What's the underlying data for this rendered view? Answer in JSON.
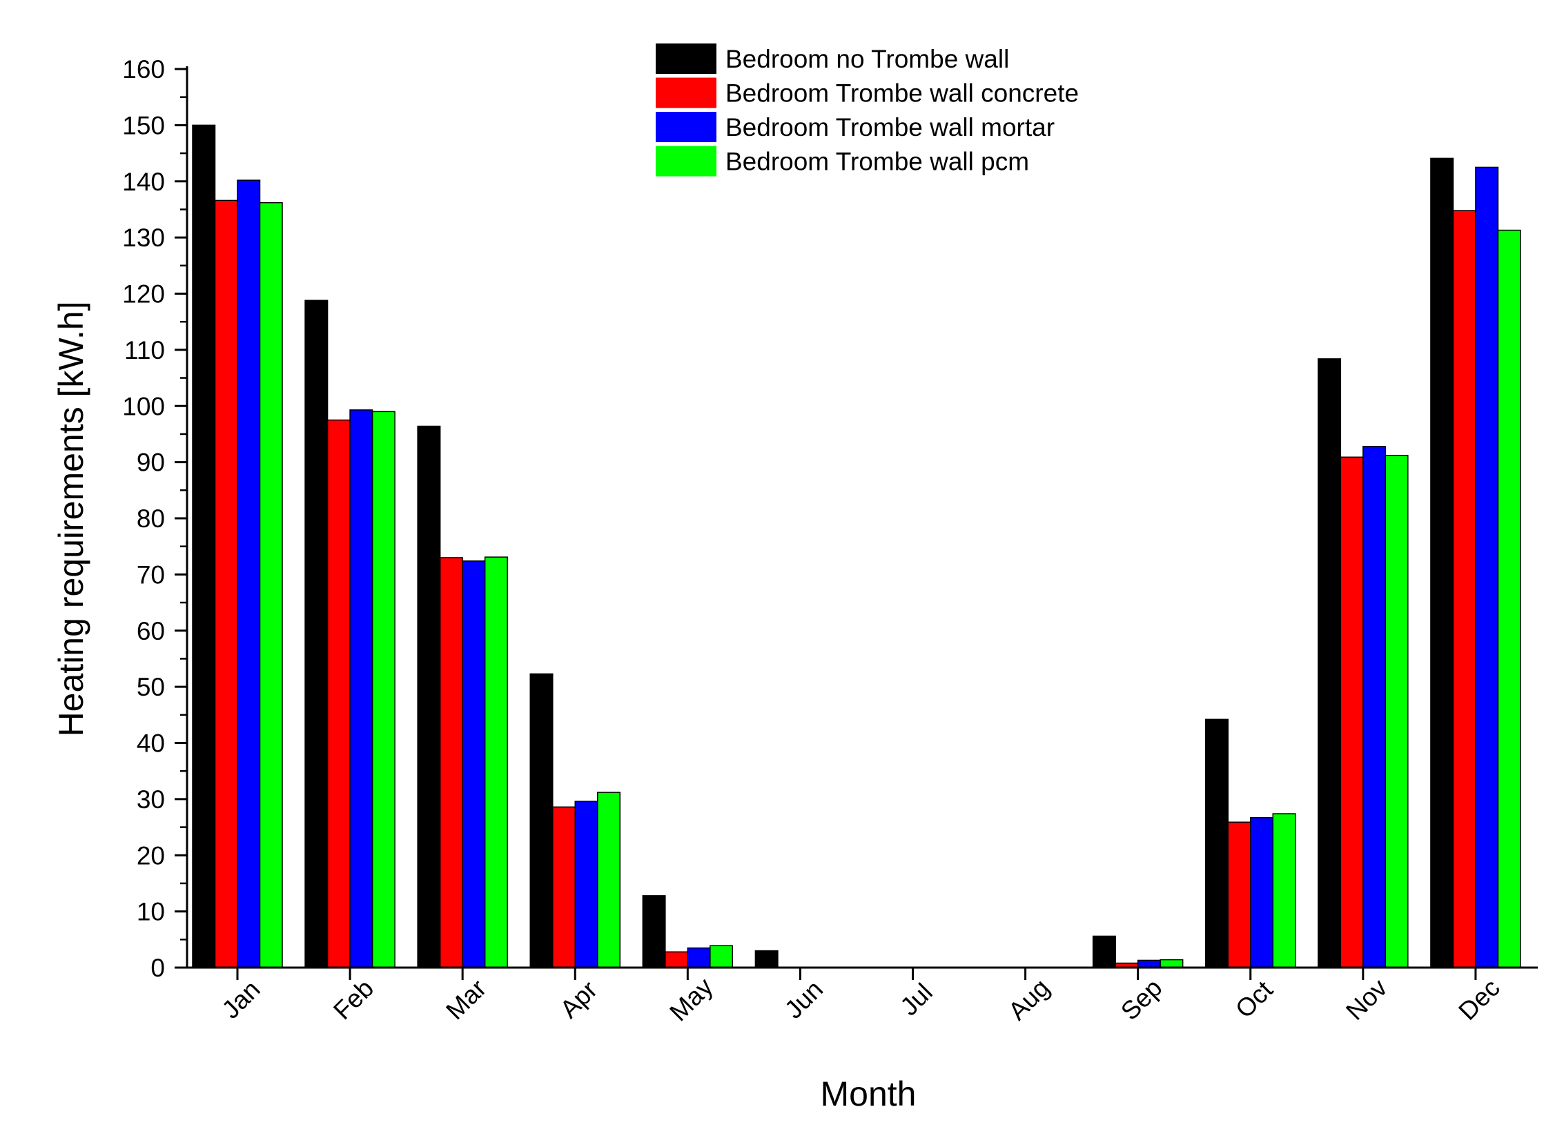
{
  "chart_data": {
    "type": "bar",
    "title": "",
    "xlabel": "Month",
    "ylabel": "Heating requirements [kW.h]",
    "ylim": [
      0,
      160
    ],
    "yticks": [
      0,
      10,
      20,
      30,
      40,
      50,
      60,
      70,
      80,
      90,
      100,
      110,
      120,
      130,
      140,
      150,
      160
    ],
    "grid": false,
    "legend_position": "top-center",
    "categories": [
      "Jan",
      "Feb",
      "Mar",
      "Apr",
      "May",
      "Jun",
      "Jul",
      "Aug",
      "Sep",
      "Oct",
      "Nov",
      "Dec"
    ],
    "series": [
      {
        "name": "Bedroom no Trombe wall",
        "color": "#000000",
        "values": [
          150.0,
          118.8,
          96.4,
          52.3,
          12.8,
          3.0,
          0,
          0,
          5.6,
          44.2,
          108.4,
          144.1
        ]
      },
      {
        "name": "Bedroom Trombe wall concrete",
        "color": "#ff0000",
        "values": [
          136.6,
          97.5,
          73.0,
          28.6,
          2.8,
          0,
          0,
          0,
          0.8,
          25.9,
          90.9,
          134.8
        ]
      },
      {
        "name": "Bedroom Trombe wall mortar",
        "color": "#0000ff",
        "values": [
          140.2,
          99.3,
          72.4,
          29.6,
          3.5,
          0,
          0,
          0,
          1.3,
          26.7,
          92.8,
          142.5
        ]
      },
      {
        "name": "Bedroom Trombe wall pcm",
        "color": "#00ff00",
        "values": [
          136.2,
          99.0,
          73.1,
          31.2,
          3.9,
          0,
          0,
          0,
          1.4,
          27.4,
          91.2,
          131.3
        ]
      }
    ]
  }
}
